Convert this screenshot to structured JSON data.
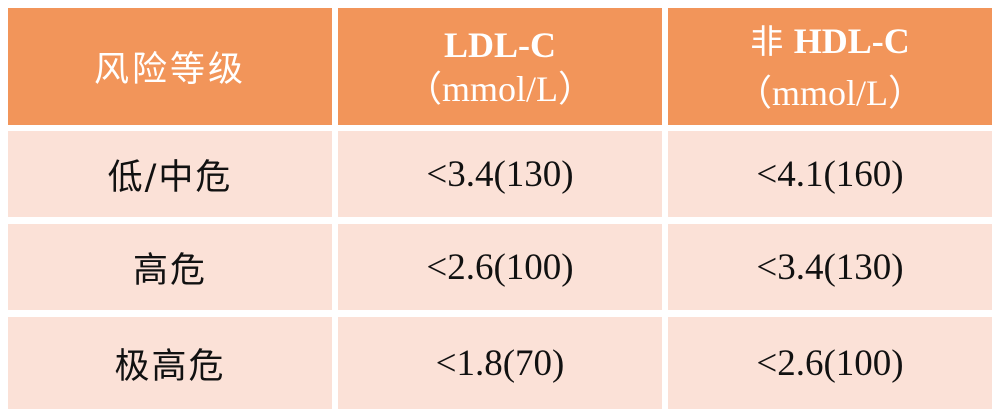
{
  "table": {
    "header": {
      "col1": "风险等级",
      "col2": {
        "line1": "LDL-C",
        "line2_open": "（",
        "line2_unit": "mmol/L",
        "line2_close": "）"
      },
      "col3": {
        "line1_prefix": "非 ",
        "line1": "HDL-C",
        "line2_open": "（",
        "line2_unit": "mmol/L",
        "line2_close": "）"
      }
    },
    "rows": [
      {
        "level": "低/中危",
        "ldl": "<3.4(130)",
        "non_hdl": "<4.1(160)"
      },
      {
        "level": "高危",
        "ldl": "<2.6(100)",
        "non_hdl": "<3.4(130)"
      },
      {
        "level": "极高危",
        "ldl": "<1.8(70)",
        "non_hdl": "<2.6(100)"
      }
    ]
  },
  "colors": {
    "header_bg": "#f2955a",
    "header_text": "#ffffff",
    "body_bg": "#fbe1d7",
    "body_text": "#111111"
  }
}
